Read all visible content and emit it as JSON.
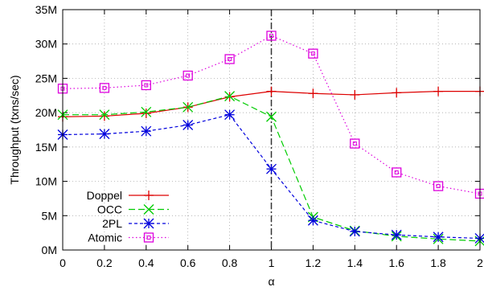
{
  "chart_data": {
    "type": "line",
    "xlabel": "α",
    "ylabel": "Throughput (txns/sec)",
    "x": [
      0,
      0.2,
      0.4,
      0.6,
      0.8,
      1,
      1.2,
      1.4,
      1.6,
      1.8,
      2
    ],
    "x_tick_labels": [
      "0",
      "0.2",
      "0.4",
      "0.6",
      "0.8",
      "1",
      "1.2",
      "1.4",
      "1.6",
      "1.8",
      "2"
    ],
    "xlim": [
      0,
      2
    ],
    "y_tick_values": [
      0,
      5000000,
      10000000,
      15000000,
      20000000,
      25000000,
      30000000,
      35000000
    ],
    "y_tick_labels": [
      "0M",
      "5M",
      "10M",
      "15M",
      "20M",
      "25M",
      "30M",
      "35M"
    ],
    "ylim": [
      0,
      35000000
    ],
    "grid": true,
    "reference_line_x": 1,
    "legend_position": "bottom-left",
    "series": [
      {
        "name": "Doppel",
        "color": "#dd0000",
        "marker": "plus",
        "dash": "solid",
        "values": [
          19400000,
          19500000,
          19900000,
          20800000,
          22300000,
          23100000,
          22800000,
          22600000,
          22900000,
          23100000,
          23100000
        ]
      },
      {
        "name": "OCC",
        "color": "#00cc00",
        "marker": "cross",
        "dash": "long-dash",
        "values": [
          19700000,
          19700000,
          20100000,
          20800000,
          22400000,
          19400000,
          4800000,
          2800000,
          2000000,
          1600000,
          1300000
        ]
      },
      {
        "name": "2PL",
        "color": "#0000dd",
        "marker": "star",
        "dash": "short-dash",
        "values": [
          16800000,
          16900000,
          17300000,
          18200000,
          19700000,
          11800000,
          4300000,
          2700000,
          2200000,
          1900000,
          1700000
        ]
      },
      {
        "name": "Atomic",
        "color": "#dd00dd",
        "marker": "square",
        "dash": "dotted",
        "values": [
          23500000,
          23600000,
          24000000,
          25400000,
          27800000,
          31200000,
          28600000,
          15500000,
          11300000,
          9300000,
          8200000
        ]
      }
    ]
  }
}
